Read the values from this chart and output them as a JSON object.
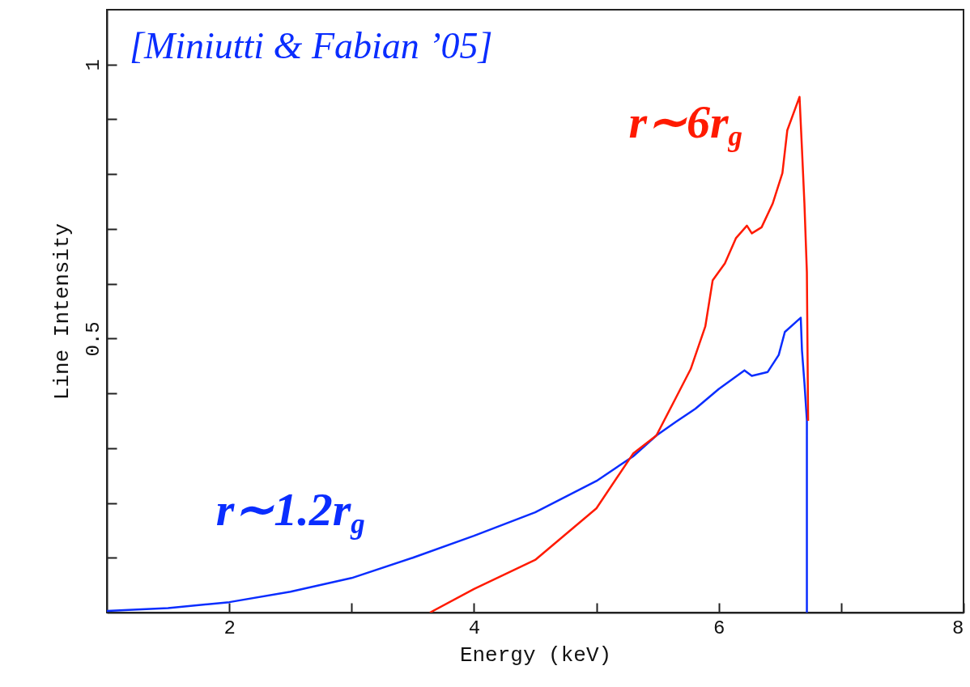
{
  "chart_data": {
    "type": "line",
    "xlabel": "Energy (keV)",
    "ylabel": "Line Intensity",
    "annotations": [
      "[Miniutti & Fabian ’05]"
    ],
    "xlim": [
      1,
      8
    ],
    "ylim": [
      0,
      1.1
    ],
    "xticks": [
      2,
      {
        "value": 3,
        "label": null
      },
      4,
      {
        "value": 5,
        "label": null
      },
      6,
      {
        "value": 7,
        "label": null
      },
      8
    ],
    "yticks": [
      {
        "value": 0.1,
        "label": null
      },
      {
        "value": 0.2,
        "label": null
      },
      {
        "value": 0.3,
        "label": null
      },
      {
        "value": 0.4,
        "label": null
      },
      0.5,
      {
        "value": 0.6,
        "label": null
      },
      {
        "value": 0.7,
        "label": null
      },
      {
        "value": 0.8,
        "label": null
      },
      {
        "value": 0.9,
        "label": null
      },
      1
    ],
    "series": [
      {
        "name": "r∼1.2r$_{g}$",
        "color": "#0a2dff",
        "x": [
          1,
          1.5,
          2,
          2.5,
          3,
          3.5,
          4,
          4.5,
          5,
          5.3,
          5.49,
          5.65,
          5.81,
          6.0,
          6.21,
          6.27,
          6.4,
          6.49,
          6.54,
          6.67,
          6.68,
          6.7,
          6.72,
          6.72
        ],
        "values": [
          0.003,
          0.008,
          0.019,
          0.038,
          0.063,
          0.1,
          0.14,
          0.183,
          0.24,
          0.285,
          0.323,
          0.348,
          0.372,
          0.408,
          0.442,
          0.432,
          0.439,
          0.47,
          0.512,
          0.538,
          0.478,
          0.419,
          0.351,
          0
        ]
      },
      {
        "name": "r∼6r$_{g}$",
        "color": "#ff1a00",
        "x": [
          3.64,
          4,
          4.5,
          5,
          5.3,
          5.49,
          5.65,
          5.77,
          5.89,
          5.95,
          6.05,
          6.14,
          6.23,
          6.27,
          6.35,
          6.44,
          6.52,
          6.56,
          6.66,
          6.68,
          6.7,
          6.72,
          6.73
        ],
        "values": [
          0,
          0.043,
          0.096,
          0.19,
          0.29,
          0.323,
          0.392,
          0.444,
          0.522,
          0.606,
          0.637,
          0.683,
          0.706,
          0.692,
          0.703,
          0.746,
          0.802,
          0.88,
          0.941,
          0.845,
          0.746,
          0.621,
          0.35
        ]
      }
    ]
  }
}
